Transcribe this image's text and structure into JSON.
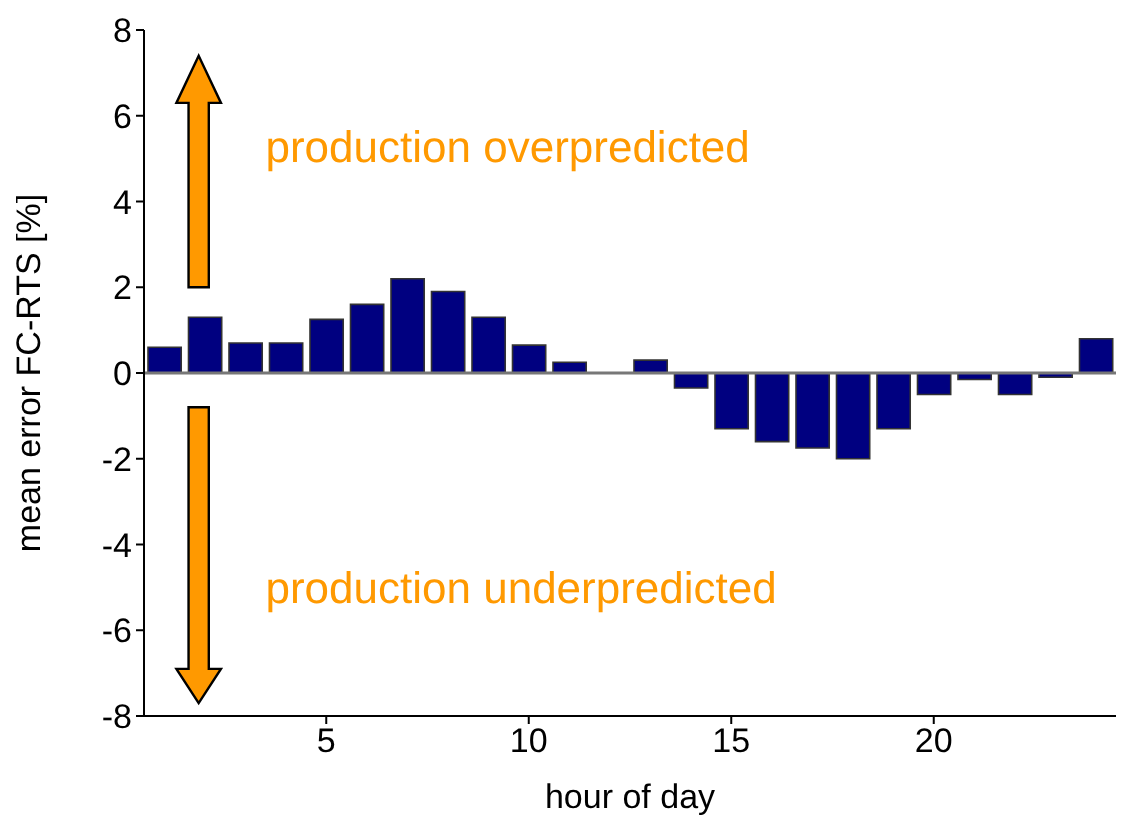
{
  "chart_data": {
    "type": "bar",
    "x": [
      1,
      2,
      3,
      4,
      5,
      6,
      7,
      8,
      9,
      10,
      11,
      12,
      13,
      14,
      15,
      16,
      17,
      18,
      19,
      20,
      21,
      22,
      23,
      24
    ],
    "values": [
      0.6,
      1.3,
      0.7,
      0.7,
      1.25,
      1.6,
      2.2,
      1.9,
      1.3,
      0.65,
      0.25,
      0,
      0.3,
      -0.35,
      -1.3,
      -1.6,
      -1.75,
      -2.0,
      -1.3,
      -0.5,
      -0.15,
      -0.5,
      -0.1,
      0.8
    ],
    "color": "#000080",
    "xlabel": "hour of day",
    "ylabel": "mean error  FC-RTS [%]",
    "xlim": [
      0.5,
      24.5
    ],
    "xticks": [
      5,
      10,
      15,
      20
    ],
    "ylim": [
      -8,
      8
    ],
    "yticks": [
      -8,
      -6,
      -4,
      -2,
      0,
      2,
      4,
      6,
      8
    ],
    "annotations": [
      "production overpredicted",
      "production underpredicted"
    ],
    "ref_lines": [
      {
        "axis": "y",
        "value": 0,
        "color": "#777777"
      }
    ],
    "grid": false,
    "legend": false
  }
}
